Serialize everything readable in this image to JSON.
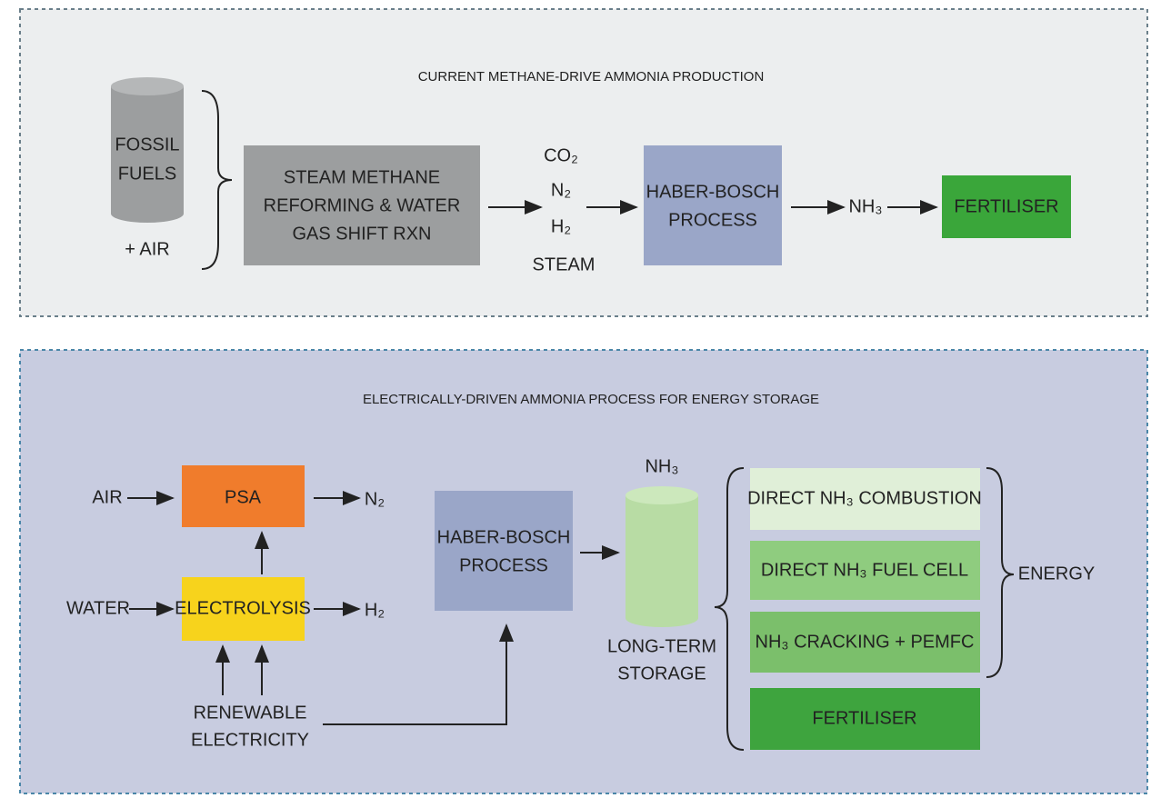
{
  "top_panel": {
    "title": "CURRENT METHANE-DRIVE AMMONIA PRODUCTION",
    "fuel": [
      "FOSSIL",
      "FUELS"
    ],
    "air": "+ AIR",
    "reformer": [
      "STEAM METHANE",
      "REFORMING & WATER",
      "GAS SHIFT RXN"
    ],
    "gases": [
      "CO₂",
      "N₂",
      "H₂",
      "STEAM"
    ],
    "haber_bosch": [
      "HABER-BOSCH",
      "PROCESS"
    ],
    "product": "NH₃",
    "output": "FERTILISER"
  },
  "bottom_panel": {
    "title": "ELECTRICALLY-DRIVEN AMMONIA PROCESS FOR ENERGY STORAGE",
    "air": "AIR",
    "water": "WATER",
    "psa": "PSA",
    "electrolysis": "ELECTROLYSIS",
    "nitrogen": "N₂",
    "hydrogen": "H₂",
    "electricity": [
      "RENEWABLE",
      "ELECTRICITY"
    ],
    "haber_bosch": [
      "HABER-BOSCH",
      "PROCESS"
    ],
    "storage_label": "NH₃",
    "storage": [
      "LONG-TERM",
      "STORAGE"
    ],
    "uses": [
      "DIRECT NH₃ COMBUSTION",
      "DIRECT NH₃ FUEL CELL",
      "NH₃ CRACKING + PEMFC",
      "FERTILISER"
    ],
    "energy": "ENERGY"
  }
}
